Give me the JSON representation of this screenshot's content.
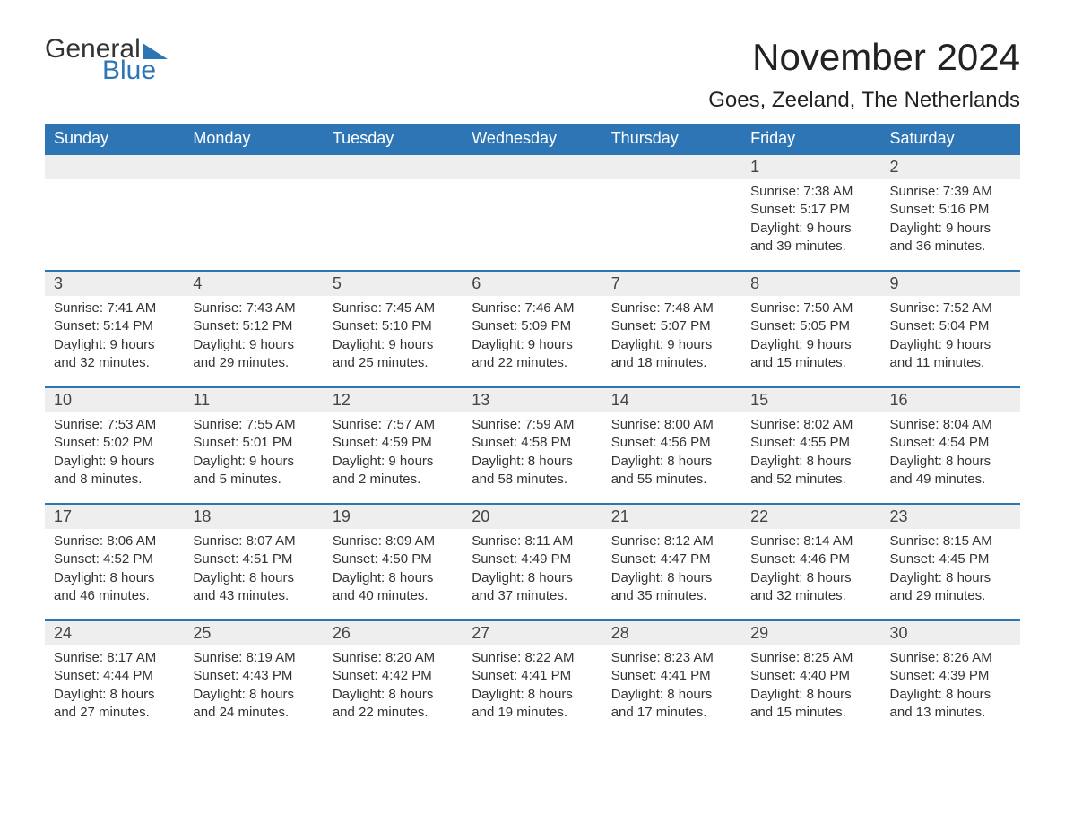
{
  "logo": {
    "word1": "General",
    "word2": "Blue",
    "tri_color": "#2e75b6"
  },
  "title": {
    "month": "November 2024",
    "location": "Goes, Zeeland, The Netherlands"
  },
  "colors": {
    "header_bg": "#2e75b6",
    "header_text": "#ffffff",
    "daynum_bg": "#eeeeee",
    "row_border": "#2e75b6",
    "body_text": "#333333",
    "page_bg": "#ffffff"
  },
  "layout": {
    "columns": 7,
    "weeks": 5,
    "week_start": "Sunday"
  },
  "calendar": {
    "day_headers": [
      "Sunday",
      "Monday",
      "Tuesday",
      "Wednesday",
      "Thursday",
      "Friday",
      "Saturday"
    ],
    "weeks": [
      [
        null,
        null,
        null,
        null,
        null,
        {
          "n": "1",
          "sunrise": "Sunrise: 7:38 AM",
          "sunset": "Sunset: 5:17 PM",
          "d1": "Daylight: 9 hours",
          "d2": "and 39 minutes."
        },
        {
          "n": "2",
          "sunrise": "Sunrise: 7:39 AM",
          "sunset": "Sunset: 5:16 PM",
          "d1": "Daylight: 9 hours",
          "d2": "and 36 minutes."
        }
      ],
      [
        {
          "n": "3",
          "sunrise": "Sunrise: 7:41 AM",
          "sunset": "Sunset: 5:14 PM",
          "d1": "Daylight: 9 hours",
          "d2": "and 32 minutes."
        },
        {
          "n": "4",
          "sunrise": "Sunrise: 7:43 AM",
          "sunset": "Sunset: 5:12 PM",
          "d1": "Daylight: 9 hours",
          "d2": "and 29 minutes."
        },
        {
          "n": "5",
          "sunrise": "Sunrise: 7:45 AM",
          "sunset": "Sunset: 5:10 PM",
          "d1": "Daylight: 9 hours",
          "d2": "and 25 minutes."
        },
        {
          "n": "6",
          "sunrise": "Sunrise: 7:46 AM",
          "sunset": "Sunset: 5:09 PM",
          "d1": "Daylight: 9 hours",
          "d2": "and 22 minutes."
        },
        {
          "n": "7",
          "sunrise": "Sunrise: 7:48 AM",
          "sunset": "Sunset: 5:07 PM",
          "d1": "Daylight: 9 hours",
          "d2": "and 18 minutes."
        },
        {
          "n": "8",
          "sunrise": "Sunrise: 7:50 AM",
          "sunset": "Sunset: 5:05 PM",
          "d1": "Daylight: 9 hours",
          "d2": "and 15 minutes."
        },
        {
          "n": "9",
          "sunrise": "Sunrise: 7:52 AM",
          "sunset": "Sunset: 5:04 PM",
          "d1": "Daylight: 9 hours",
          "d2": "and 11 minutes."
        }
      ],
      [
        {
          "n": "10",
          "sunrise": "Sunrise: 7:53 AM",
          "sunset": "Sunset: 5:02 PM",
          "d1": "Daylight: 9 hours",
          "d2": "and 8 minutes."
        },
        {
          "n": "11",
          "sunrise": "Sunrise: 7:55 AM",
          "sunset": "Sunset: 5:01 PM",
          "d1": "Daylight: 9 hours",
          "d2": "and 5 minutes."
        },
        {
          "n": "12",
          "sunrise": "Sunrise: 7:57 AM",
          "sunset": "Sunset: 4:59 PM",
          "d1": "Daylight: 9 hours",
          "d2": "and 2 minutes."
        },
        {
          "n": "13",
          "sunrise": "Sunrise: 7:59 AM",
          "sunset": "Sunset: 4:58 PM",
          "d1": "Daylight: 8 hours",
          "d2": "and 58 minutes."
        },
        {
          "n": "14",
          "sunrise": "Sunrise: 8:00 AM",
          "sunset": "Sunset: 4:56 PM",
          "d1": "Daylight: 8 hours",
          "d2": "and 55 minutes."
        },
        {
          "n": "15",
          "sunrise": "Sunrise: 8:02 AM",
          "sunset": "Sunset: 4:55 PM",
          "d1": "Daylight: 8 hours",
          "d2": "and 52 minutes."
        },
        {
          "n": "16",
          "sunrise": "Sunrise: 8:04 AM",
          "sunset": "Sunset: 4:54 PM",
          "d1": "Daylight: 8 hours",
          "d2": "and 49 minutes."
        }
      ],
      [
        {
          "n": "17",
          "sunrise": "Sunrise: 8:06 AM",
          "sunset": "Sunset: 4:52 PM",
          "d1": "Daylight: 8 hours",
          "d2": "and 46 minutes."
        },
        {
          "n": "18",
          "sunrise": "Sunrise: 8:07 AM",
          "sunset": "Sunset: 4:51 PM",
          "d1": "Daylight: 8 hours",
          "d2": "and 43 minutes."
        },
        {
          "n": "19",
          "sunrise": "Sunrise: 8:09 AM",
          "sunset": "Sunset: 4:50 PM",
          "d1": "Daylight: 8 hours",
          "d2": "and 40 minutes."
        },
        {
          "n": "20",
          "sunrise": "Sunrise: 8:11 AM",
          "sunset": "Sunset: 4:49 PM",
          "d1": "Daylight: 8 hours",
          "d2": "and 37 minutes."
        },
        {
          "n": "21",
          "sunrise": "Sunrise: 8:12 AM",
          "sunset": "Sunset: 4:47 PM",
          "d1": "Daylight: 8 hours",
          "d2": "and 35 minutes."
        },
        {
          "n": "22",
          "sunrise": "Sunrise: 8:14 AM",
          "sunset": "Sunset: 4:46 PM",
          "d1": "Daylight: 8 hours",
          "d2": "and 32 minutes."
        },
        {
          "n": "23",
          "sunrise": "Sunrise: 8:15 AM",
          "sunset": "Sunset: 4:45 PM",
          "d1": "Daylight: 8 hours",
          "d2": "and 29 minutes."
        }
      ],
      [
        {
          "n": "24",
          "sunrise": "Sunrise: 8:17 AM",
          "sunset": "Sunset: 4:44 PM",
          "d1": "Daylight: 8 hours",
          "d2": "and 27 minutes."
        },
        {
          "n": "25",
          "sunrise": "Sunrise: 8:19 AM",
          "sunset": "Sunset: 4:43 PM",
          "d1": "Daylight: 8 hours",
          "d2": "and 24 minutes."
        },
        {
          "n": "26",
          "sunrise": "Sunrise: 8:20 AM",
          "sunset": "Sunset: 4:42 PM",
          "d1": "Daylight: 8 hours",
          "d2": "and 22 minutes."
        },
        {
          "n": "27",
          "sunrise": "Sunrise: 8:22 AM",
          "sunset": "Sunset: 4:41 PM",
          "d1": "Daylight: 8 hours",
          "d2": "and 19 minutes."
        },
        {
          "n": "28",
          "sunrise": "Sunrise: 8:23 AM",
          "sunset": "Sunset: 4:41 PM",
          "d1": "Daylight: 8 hours",
          "d2": "and 17 minutes."
        },
        {
          "n": "29",
          "sunrise": "Sunrise: 8:25 AM",
          "sunset": "Sunset: 4:40 PM",
          "d1": "Daylight: 8 hours",
          "d2": "and 15 minutes."
        },
        {
          "n": "30",
          "sunrise": "Sunrise: 8:26 AM",
          "sunset": "Sunset: 4:39 PM",
          "d1": "Daylight: 8 hours",
          "d2": "and 13 minutes."
        }
      ]
    ]
  }
}
